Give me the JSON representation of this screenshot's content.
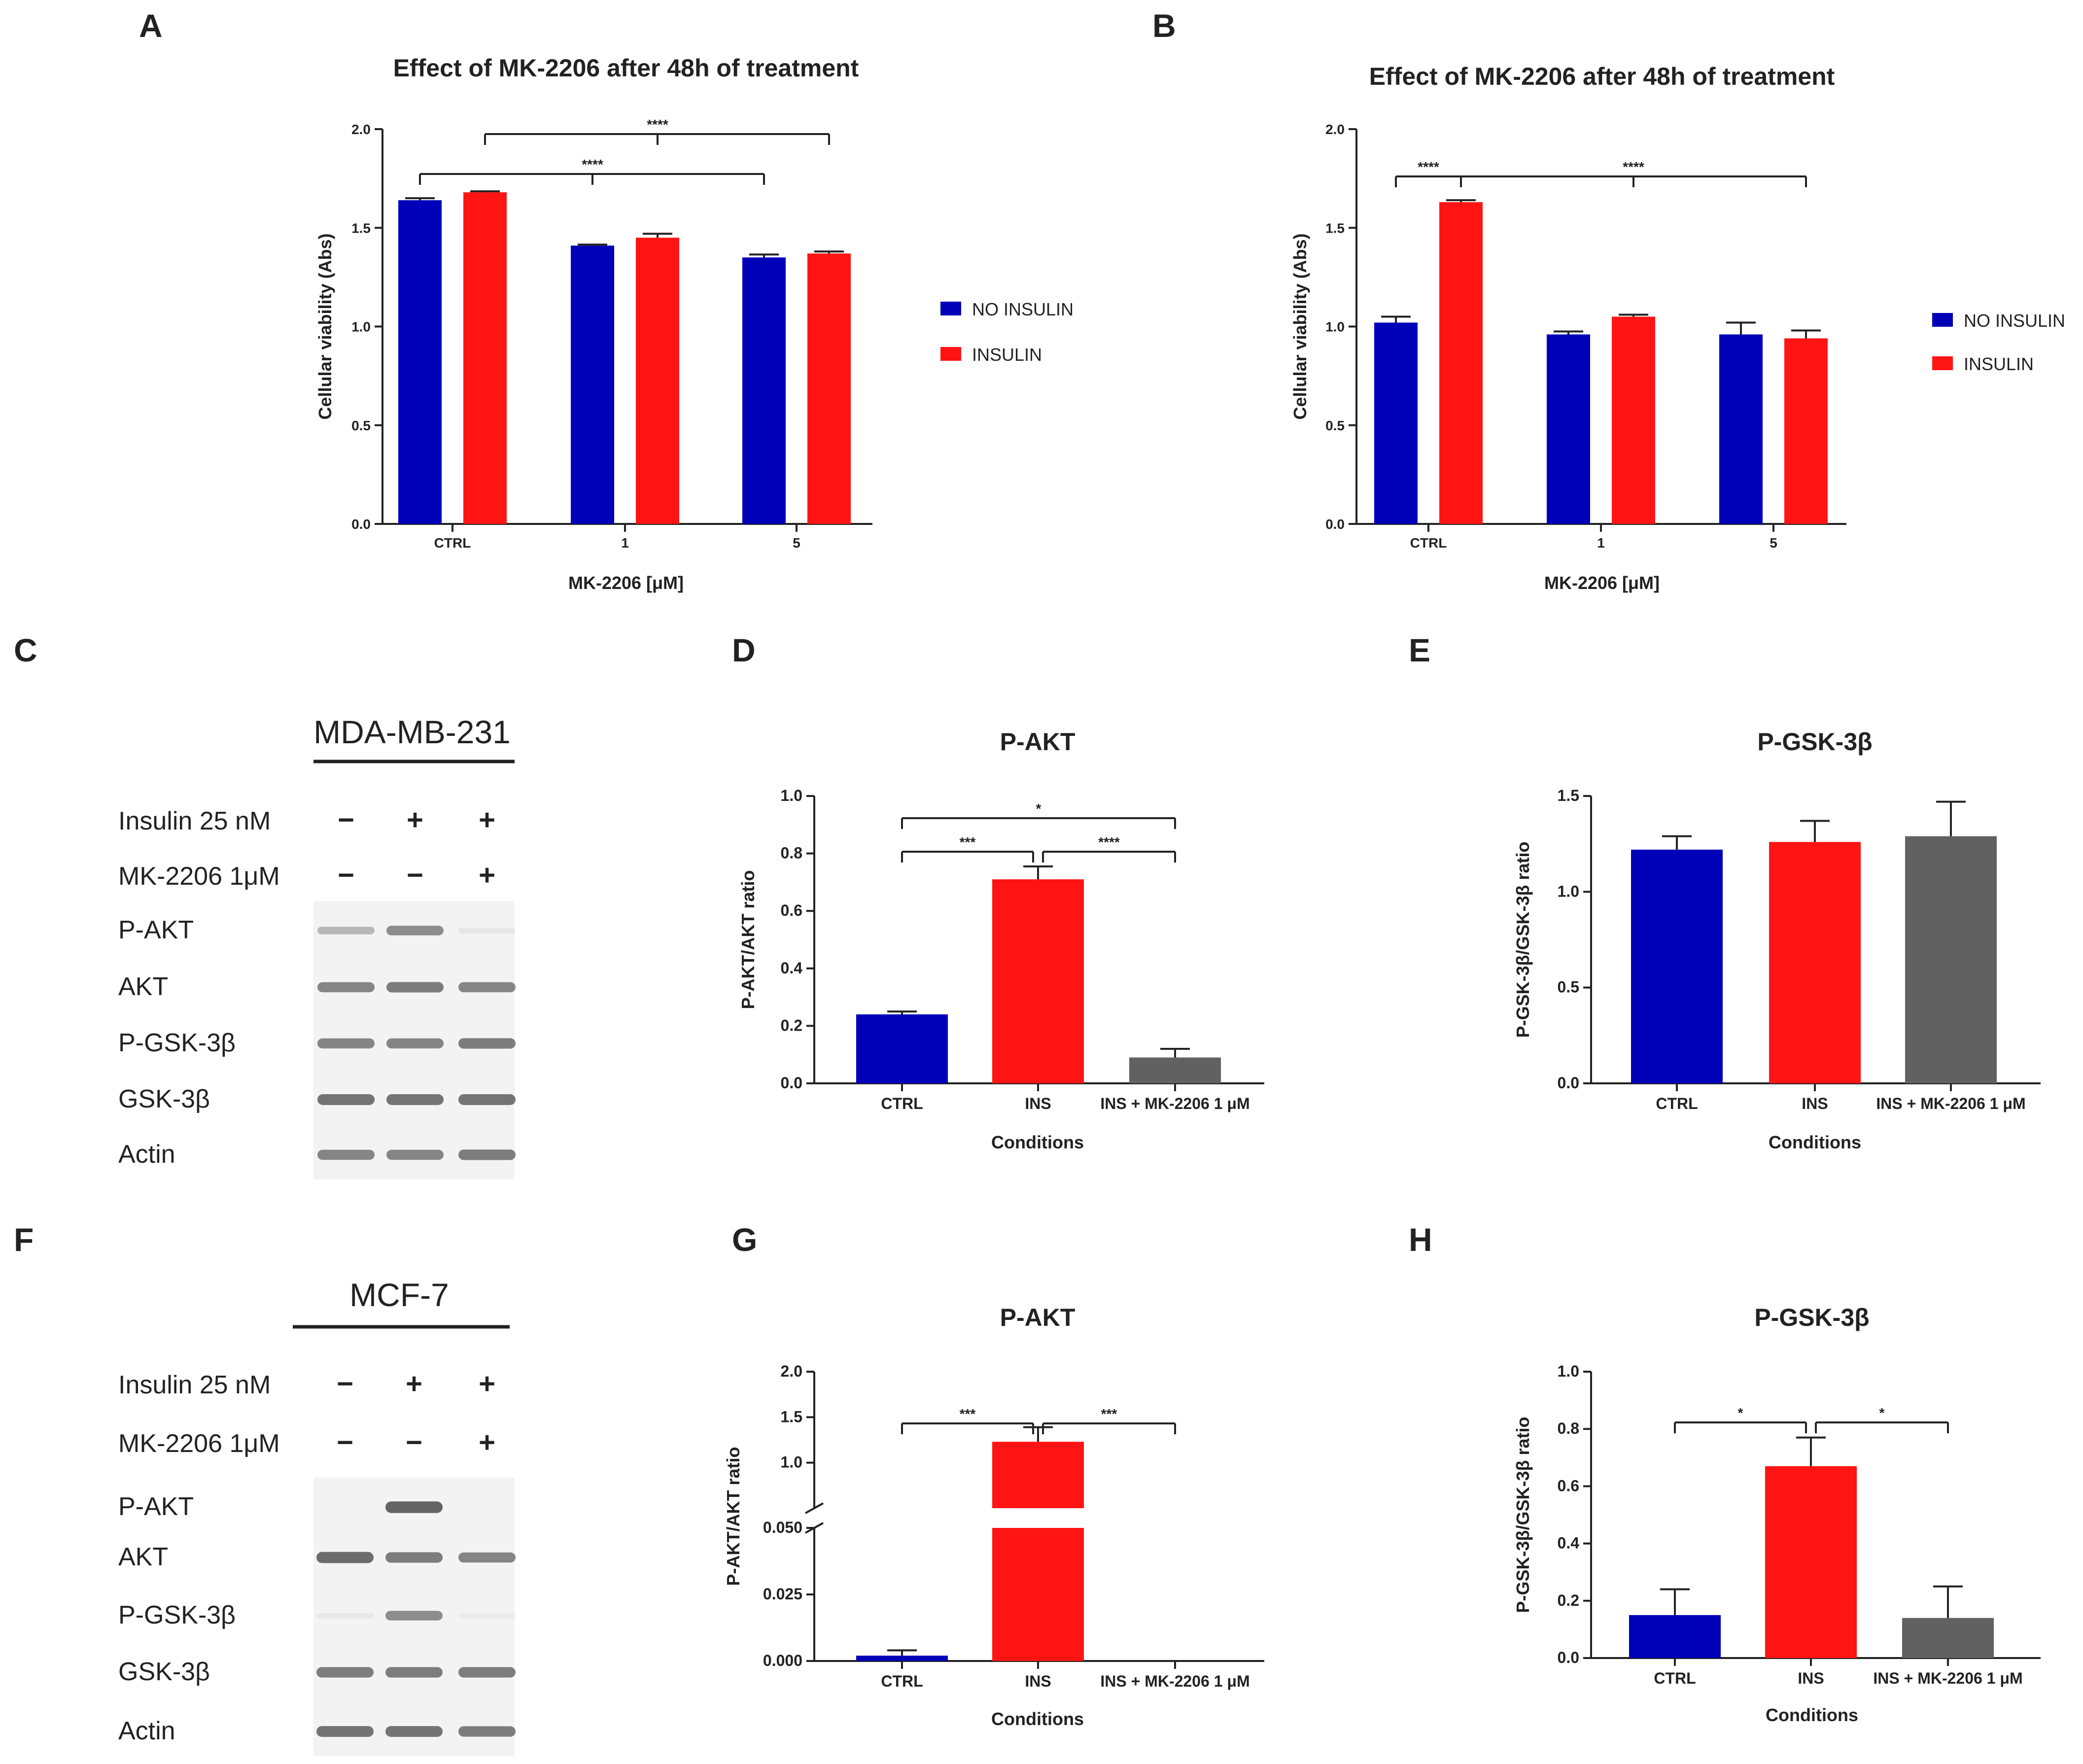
{
  "panel_letters": {
    "A": "A",
    "B": "B",
    "C": "C",
    "D": "D",
    "E": "E",
    "F": "F",
    "G": "G",
    "H": "H"
  },
  "colors": {
    "blue": "#0000B8",
    "red": "#FF1414",
    "gray": "#616161",
    "axis": "#222222",
    "band": "#4a4a4a"
  },
  "chart_data": [
    {
      "id": "A",
      "type": "bar",
      "title": "Effect of MK-2206 after 48h of treatment",
      "xlabel": "MK-2206 [μM]",
      "ylabel": "Cellular viability (Abs)",
      "ylim": [
        0,
        2.0
      ],
      "ytick_labels": [
        "0.0",
        "0.5",
        "1.0",
        "1.5",
        "2.0"
      ],
      "categories": [
        "CTRL",
        "1",
        "5"
      ],
      "series": [
        {
          "name": "NO INSULIN",
          "values": [
            1.64,
            1.41,
            1.35
          ],
          "errors": [
            0.01,
            0.005,
            0.015
          ]
        },
        {
          "name": "INSULIN",
          "values": [
            1.68,
            1.45,
            1.37
          ],
          "errors": [
            0.005,
            0.02,
            0.01
          ]
        }
      ],
      "legend": [
        "NO INSULIN",
        "INSULIN"
      ],
      "significance": [
        {
          "label": "****",
          "note": "CTRL NO INSULIN vs 1 and 5 NO INSULIN"
        },
        {
          "label": "****",
          "note": "CTRL INSULIN vs 1 and 5 INSULIN"
        }
      ]
    },
    {
      "id": "B",
      "type": "bar",
      "title": "Effect of MK-2206 after 48h of treatment",
      "xlabel": "MK-2206 [μM]",
      "ylabel": "Cellular viability (Abs)",
      "ylim": [
        0,
        2.0
      ],
      "ytick_labels": [
        "0.0",
        "0.5",
        "1.0",
        "1.5",
        "2.0"
      ],
      "categories": [
        "CTRL",
        "1",
        "5"
      ],
      "series": [
        {
          "name": "NO INSULIN",
          "values": [
            1.02,
            0.96,
            0.96
          ],
          "errors": [
            0.03,
            0.015,
            0.06
          ]
        },
        {
          "name": "INSULIN",
          "values": [
            1.63,
            1.05,
            0.94
          ],
          "errors": [
            0.01,
            0.01,
            0.04
          ]
        }
      ],
      "legend": [
        "NO INSULIN",
        "INSULIN"
      ],
      "significance": [
        {
          "label": "****",
          "note": "CTRL NO INSULIN vs CTRL INSULIN"
        },
        {
          "label": "****",
          "note": "CTRL INSULIN vs 1 and 5"
        }
      ]
    },
    {
      "id": "D",
      "type": "bar",
      "title": "P-AKT",
      "xlabel": "Conditions",
      "ylabel": "P-AKT/AKT ratio",
      "ylim": [
        0,
        1.0
      ],
      "ytick_labels": [
        "0.0",
        "0.2",
        "0.4",
        "0.6",
        "0.8",
        "1.0"
      ],
      "categories": [
        "CTRL",
        "INS",
        "INS + MK-2206 1 μM"
      ],
      "values": [
        0.24,
        0.71,
        0.09
      ],
      "errors": [
        0.01,
        0.045,
        0.03
      ],
      "significance": [
        {
          "label": "*",
          "pair": [
            "CTRL",
            "INS + MK-2206 1 μM"
          ]
        },
        {
          "label": "***",
          "pair": [
            "CTRL",
            "INS"
          ]
        },
        {
          "label": "****",
          "pair": [
            "INS",
            "INS + MK-2206 1 μM"
          ]
        }
      ]
    },
    {
      "id": "E",
      "type": "bar",
      "title": "P-GSK-3β",
      "xlabel": "Conditions",
      "ylabel": "P-GSK-3β/GSK-3β ratio",
      "ylim": [
        0,
        1.5
      ],
      "ytick_labels": [
        "0.0",
        "0.5",
        "1.0",
        "1.5"
      ],
      "categories": [
        "CTRL",
        "INS",
        "INS + MK-2206 1 μM"
      ],
      "values": [
        1.22,
        1.26,
        1.29
      ],
      "errors": [
        0.07,
        0.11,
        0.18
      ],
      "significance": []
    },
    {
      "id": "G",
      "type": "bar",
      "title": "P-AKT",
      "xlabel": "Conditions",
      "ylabel": "P-AKT/AKT ratio",
      "axis_break": true,
      "lower_ylim": [
        0,
        0.05
      ],
      "upper_ylim": [
        0.5,
        2.0
      ],
      "ytick_labels": [
        "0.000",
        "0.025",
        "0.050",
        "1.0",
        "1.5",
        "2.0"
      ],
      "categories": [
        "CTRL",
        "INS",
        "INS + MK-2206 1 μM"
      ],
      "values": [
        0.002,
        1.23,
        0.0
      ],
      "errors": [
        0.002,
        0.16,
        0.0
      ],
      "significance": [
        {
          "label": "***",
          "pair": [
            "CTRL",
            "INS"
          ]
        },
        {
          "label": "***",
          "pair": [
            "INS",
            "INS + MK-2206 1 μM"
          ]
        }
      ]
    },
    {
      "id": "H",
      "type": "bar",
      "title": "P-GSK-3β",
      "xlabel": "Conditions",
      "ylabel": "P-GSK-3β/GSK-3β ratio",
      "ylim": [
        0,
        1.0
      ],
      "ytick_labels": [
        "0.0",
        "0.2",
        "0.4",
        "0.6",
        "0.8",
        "1.0"
      ],
      "categories": [
        "CTRL",
        "INS",
        "INS + MK-2206 1 μM"
      ],
      "values": [
        0.15,
        0.67,
        0.14
      ],
      "errors": [
        0.09,
        0.1,
        0.11
      ],
      "significance": [
        {
          "label": "*",
          "pair": [
            "CTRL",
            "INS"
          ]
        },
        {
          "label": "*",
          "pair": [
            "INS",
            "INS + MK-2206 1 μM"
          ]
        }
      ]
    }
  ],
  "blots": [
    {
      "id": "C",
      "cell_line": "MDA-MB-231",
      "conditions": [
        {
          "label": "Insulin 25 nM",
          "signs": [
            "−",
            "+",
            "+"
          ]
        },
        {
          "label": "MK-2206 1μM",
          "signs": [
            "−",
            "−",
            "+"
          ]
        }
      ],
      "rows": [
        {
          "label": "P-AKT",
          "intensity": [
            0.35,
            0.6,
            0.08
          ]
        },
        {
          "label": "AKT",
          "intensity": [
            0.65,
            0.7,
            0.65
          ]
        },
        {
          "label": "P-GSK-3β",
          "intensity": [
            0.65,
            0.65,
            0.7
          ]
        },
        {
          "label": "GSK-3β",
          "intensity": [
            0.75,
            0.75,
            0.75
          ]
        },
        {
          "label": "Actin",
          "intensity": [
            0.65,
            0.65,
            0.7
          ]
        }
      ]
    },
    {
      "id": "F",
      "cell_line": "MCF-7",
      "conditions": [
        {
          "label": "Insulin 25 nM",
          "signs": [
            "−",
            "+",
            "+"
          ]
        },
        {
          "label": "MK-2206 1μM",
          "signs": [
            "−",
            "−",
            "+"
          ]
        }
      ],
      "rows": [
        {
          "label": "P-AKT",
          "intensity": [
            0.0,
            0.85,
            0.0
          ]
        },
        {
          "label": "AKT",
          "intensity": [
            0.8,
            0.7,
            0.65
          ]
        },
        {
          "label": "P-GSK-3β",
          "intensity": [
            0.06,
            0.6,
            0.04
          ]
        },
        {
          "label": "GSK-3β",
          "intensity": [
            0.7,
            0.7,
            0.7
          ]
        },
        {
          "label": "Actin",
          "intensity": [
            0.75,
            0.75,
            0.7
          ]
        }
      ]
    }
  ]
}
